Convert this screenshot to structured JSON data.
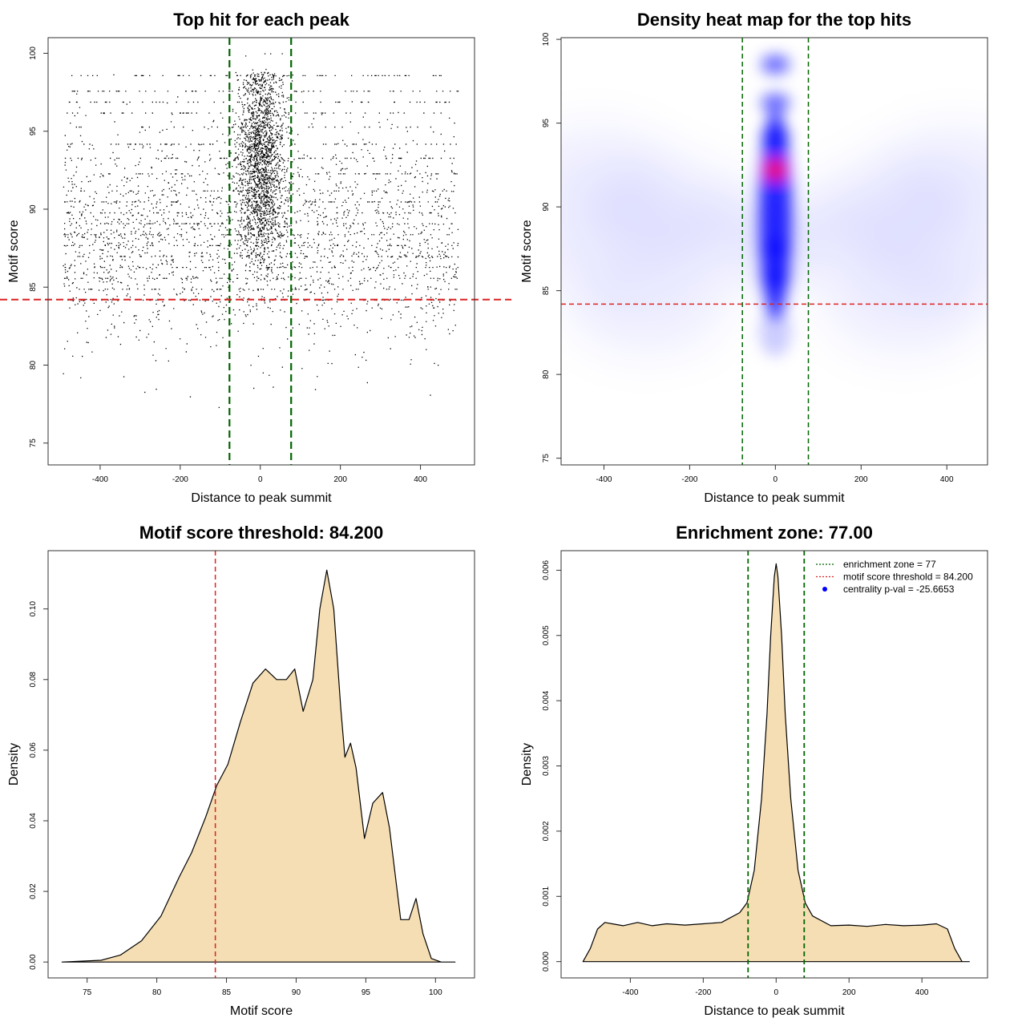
{
  "colors": {
    "points": "#000000",
    "zone_line": "#006400",
    "threshold_line": "#dd2222",
    "density_fill": "#f5deb3",
    "density_outline": "#000000",
    "heat_low": "#ffffff",
    "heat_mid": "#0000ff",
    "heat_high": "#ff0000"
  },
  "chart_data": [
    {
      "type": "scatter",
      "title": "Top hit for each peak",
      "xlabel": "Distance to peak summit",
      "ylabel": "Motif score",
      "xlim": [
        -530,
        535
      ],
      "ylim": [
        73.6,
        101.0
      ],
      "xticks": [
        -400,
        -200,
        0,
        200,
        400
      ],
      "xtick_labels": [
        "-400",
        "-200",
        "0",
        "200",
        "400"
      ],
      "yticks": [
        75,
        80,
        85,
        90,
        95,
        100
      ],
      "ytick_labels": [
        "75",
        "80",
        "85",
        "90",
        "95",
        "100"
      ],
      "grid": false,
      "enrichment_zone": [
        -77,
        77
      ],
      "score_threshold": 84.2,
      "point_x_range": [
        -493,
        493
      ],
      "central_peak_score": 92.2
    },
    {
      "type": "heatmap",
      "title": "Density heat map for the top hits",
      "xlabel": "Distance to peak summit",
      "ylabel": "Motif score",
      "xlim": [
        -500,
        495
      ],
      "ylim": [
        74.6,
        100.1
      ],
      "xticks": [
        -400,
        -200,
        0,
        200,
        400
      ],
      "xtick_labels": [
        "-400",
        "-200",
        "0",
        "200",
        "400"
      ],
      "yticks": [
        75,
        80,
        85,
        90,
        95,
        100
      ],
      "ytick_labels": [
        "75",
        "80",
        "85",
        "90",
        "95",
        "100"
      ],
      "grid": false,
      "enrichment_zone": [
        -77,
        77
      ],
      "score_threshold": 84.2,
      "hotspot": {
        "x": 0,
        "y": 92.2
      }
    },
    {
      "type": "area",
      "title": "Motif score threshold: 84.200",
      "xlabel": "Motif score",
      "ylabel": "Density",
      "xlim": [
        72.2,
        102.8
      ],
      "ylim": [
        -0.0045,
        0.1165
      ],
      "xticks": [
        75,
        80,
        85,
        90,
        95,
        100
      ],
      "xtick_labels": [
        "75",
        "80",
        "85",
        "90",
        "95",
        "100"
      ],
      "yticks": [
        0.0,
        0.02,
        0.04,
        0.06,
        0.08,
        0.1
      ],
      "ytick_labels": [
        "0.00",
        "0.02",
        "0.04",
        "0.06",
        "0.08",
        "0.10"
      ],
      "grid": false,
      "threshold": 84.2,
      "x": [
        73.2,
        76.0,
        77.4,
        78.9,
        80.3,
        81.6,
        82.5,
        83.5,
        84.3,
        85.1,
        86.0,
        86.9,
        87.8,
        88.6,
        89.3,
        89.9,
        90.5,
        91.2,
        91.7,
        92.2,
        92.7,
        93.2,
        93.5,
        93.9,
        94.3,
        94.9,
        95.5,
        96.2,
        96.7,
        97.5,
        98.1,
        98.6,
        99.1,
        99.7,
        100.4,
        101.4
      ],
      "y": [
        0.0,
        0.0005,
        0.002,
        0.006,
        0.013,
        0.024,
        0.031,
        0.041,
        0.05,
        0.056,
        0.068,
        0.079,
        0.083,
        0.08,
        0.08,
        0.083,
        0.071,
        0.08,
        0.1,
        0.111,
        0.1,
        0.072,
        0.058,
        0.062,
        0.055,
        0.035,
        0.045,
        0.048,
        0.038,
        0.012,
        0.012,
        0.018,
        0.008,
        0.001,
        0.0,
        0.0
      ]
    },
    {
      "type": "area",
      "title": "Enrichment zone: 77.00",
      "xlabel": "Distance to peak summit",
      "ylabel": "Density",
      "xlim": [
        -590,
        580
      ],
      "ylim": [
        -0.00025,
        0.0063
      ],
      "xticks": [
        -400,
        -200,
        0,
        200,
        400
      ],
      "xtick_labels": [
        "-400",
        "-200",
        "0",
        "200",
        "400"
      ],
      "yticks": [
        0.0,
        0.001,
        0.002,
        0.003,
        0.004,
        0.005,
        0.006
      ],
      "ytick_labels": [
        "0.000",
        "0.001",
        "0.002",
        "0.003",
        "0.004",
        "0.005",
        "0.006"
      ],
      "grid": false,
      "enrichment_zone": [
        -77,
        77
      ],
      "x": [
        -530,
        -510,
        -490,
        -470,
        -450,
        -420,
        -380,
        -340,
        -300,
        -250,
        -200,
        -150,
        -100,
        -80,
        -60,
        -40,
        -25,
        -15,
        -5,
        0,
        5,
        15,
        25,
        40,
        60,
        80,
        100,
        150,
        200,
        250,
        300,
        350,
        400,
        440,
        470,
        490,
        510,
        530
      ],
      "y": [
        0.0,
        0.0002,
        0.0005,
        0.0006,
        0.00058,
        0.00055,
        0.0006,
        0.00055,
        0.00058,
        0.00056,
        0.00058,
        0.0006,
        0.00075,
        0.0009,
        0.0014,
        0.0025,
        0.0038,
        0.005,
        0.0059,
        0.0061,
        0.0059,
        0.005,
        0.0038,
        0.0025,
        0.0014,
        0.0009,
        0.0007,
        0.00055,
        0.00056,
        0.00054,
        0.00057,
        0.00055,
        0.00056,
        0.00058,
        0.0005,
        0.0002,
        0.0,
        0.0
      ],
      "legend_position": "top-right",
      "legend": [
        {
          "label": "enrichment zone = 77",
          "style": "dotted-line",
          "color": "#006400"
        },
        {
          "label": "motif score threshold = 84.200",
          "style": "dotted-line",
          "color": "#dd2222"
        },
        {
          "label": "centrality p-val = -25.6653",
          "style": "dot",
          "color": "#0000ff"
        }
      ]
    }
  ]
}
